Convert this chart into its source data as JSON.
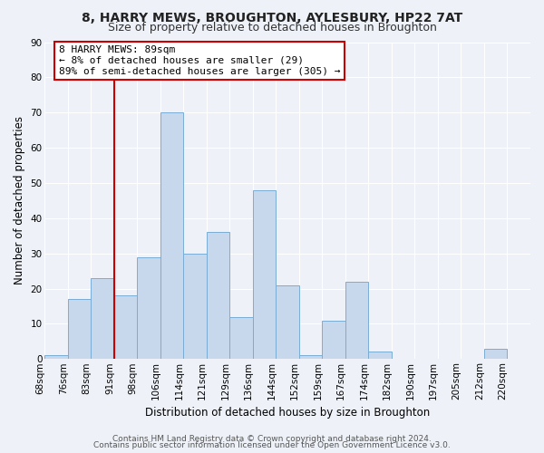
{
  "title": "8, HARRY MEWS, BROUGHTON, AYLESBURY, HP22 7AT",
  "subtitle": "Size of property relative to detached houses in Broughton",
  "xlabel": "Distribution of detached houses by size in Broughton",
  "ylabel": "Number of detached properties",
  "bin_labels": [
    "68sqm",
    "76sqm",
    "83sqm",
    "91sqm",
    "98sqm",
    "106sqm",
    "114sqm",
    "121sqm",
    "129sqm",
    "136sqm",
    "144sqm",
    "152sqm",
    "159sqm",
    "167sqm",
    "174sqm",
    "182sqm",
    "190sqm",
    "197sqm",
    "205sqm",
    "212sqm",
    "220sqm"
  ],
  "bar_heights": [
    1,
    17,
    23,
    18,
    29,
    70,
    30,
    36,
    12,
    48,
    21,
    1,
    11,
    22,
    2,
    0,
    0,
    0,
    0,
    3,
    0
  ],
  "bar_color": "#c8d8ec",
  "bar_edge_color": "#7aadd4",
  "vline_x_label": "91sqm",
  "vline_color": "#cc0000",
  "annotation_text": "8 HARRY MEWS: 89sqm\n← 8% of detached houses are smaller (29)\n89% of semi-detached houses are larger (305) →",
  "annotation_box_color": "#ffffff",
  "annotation_box_edge_color": "#cc0000",
  "ylim": [
    0,
    90
  ],
  "yticks": [
    0,
    10,
    20,
    30,
    40,
    50,
    60,
    70,
    80,
    90
  ],
  "footer1": "Contains HM Land Registry data © Crown copyright and database right 2024.",
  "footer2": "Contains public sector information licensed under the Open Government Licence v3.0.",
  "background_color": "#eef2f8",
  "grid_color": "#ffffff",
  "title_fontsize": 10,
  "subtitle_fontsize": 9,
  "axis_label_fontsize": 8.5,
  "tick_fontsize": 7.5,
  "annotation_fontsize": 8,
  "footer_fontsize": 6.5
}
